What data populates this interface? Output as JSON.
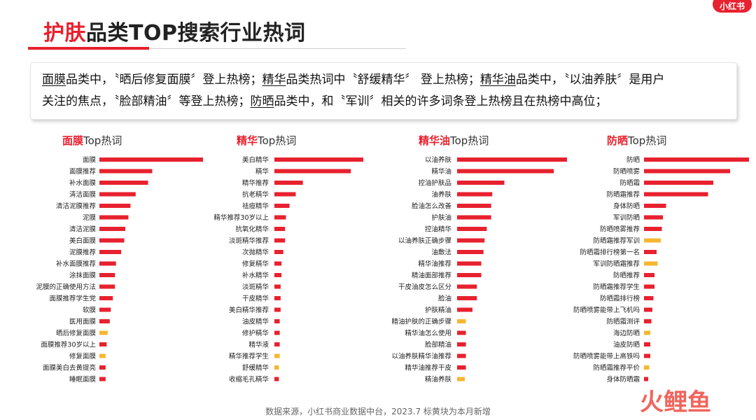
{
  "logo_text": "小红书",
  "title": {
    "accent": "护肤",
    "rest": "品类TOP搜索行业热词"
  },
  "summary": {
    "line1": [
      {
        "t": "面膜",
        "u": true
      },
      {
        "t": "品类中，〝晒后修复面膜〞登上热榜；",
        "u": false
      },
      {
        "t": "精华",
        "u": true
      },
      {
        "t": "品类热词中〝舒缓精华〞 登上热榜；",
        "u": false
      },
      {
        "t": "精华油",
        "u": true
      },
      {
        "t": "品类中，〝以油养肤〞是用户",
        "u": false
      }
    ],
    "line2": [
      {
        "t": "关注的焦点，〝脸部精油〞等登上热榜；",
        "u": false
      },
      {
        "t": "防晒",
        "u": true
      },
      {
        "t": "品类中，和〝军训〞相关的许多词条登上热榜且在热榜中高位；",
        "u": false
      }
    ]
  },
  "colors": {
    "red": "#e8212e",
    "yellow": "#f5b731"
  },
  "chart_data": [
    {
      "type": "bar",
      "title_highlight": "面膜",
      "title_suffix": "Top热词",
      "categories": [
        "面膜",
        "面膜推荐",
        "补水面膜",
        "清洁面膜",
        "清洁泥膜推荐",
        "泥膜",
        "清洁泥膜",
        "美白面膜",
        "泥膜推荐",
        "补水面膜推荐",
        "涂抹面膜",
        "泥膜的正确使用方法",
        "面膜推荐学生党",
        "软膜",
        "医用面膜",
        "晒后修复面膜",
        "面膜推荐30岁以上",
        "修复面膜",
        "面膜美白去黄提亮",
        "睡眠面膜"
      ],
      "values": [
        100,
        51,
        47,
        35,
        30,
        28,
        25,
        24,
        21,
        16,
        15,
        15,
        13,
        11,
        10,
        8,
        7,
        6,
        6,
        6
      ],
      "new": [
        false,
        false,
        false,
        false,
        false,
        false,
        false,
        false,
        false,
        false,
        false,
        false,
        false,
        false,
        false,
        true,
        false,
        true,
        false,
        false
      ]
    },
    {
      "type": "bar",
      "title_highlight": "精华",
      "title_suffix": "Top热词",
      "categories": [
        "美白精华",
        "精华",
        "精华推荐",
        "抗老精华",
        "祛痘精华",
        "精华推荐30岁以上",
        "抗氧化精华",
        "淡斑精华推荐",
        "次抛精华",
        "修复精华",
        "补水精华",
        "淡斑精华",
        "干皮精华",
        "美白精华推荐",
        "油皮精华",
        "修护精华",
        "精华液",
        "精华推荐学生",
        "舒缓精华",
        "收缩毛孔精华"
      ],
      "values": [
        100,
        86,
        32,
        24,
        17,
        13,
        12,
        12,
        10,
        8,
        8,
        7,
        7,
        7,
        6,
        6,
        6,
        6,
        5,
        5
      ],
      "new": [
        false,
        false,
        false,
        false,
        false,
        false,
        false,
        false,
        false,
        false,
        false,
        false,
        false,
        false,
        false,
        false,
        false,
        true,
        true,
        false
      ]
    },
    {
      "type": "bar",
      "title_highlight": "精华油",
      "title_suffix": "Top热词",
      "categories": [
        "以油养肤",
        "精华油",
        "控油护肤品",
        "油养肤",
        "脸油怎么改善",
        "护肤油",
        "控油精华",
        "以油养肤正确步骤",
        "油敷法",
        "精华油推荐",
        "精油面部推荐",
        "干皮油皮怎么区分",
        "脸油",
        "护肤精油",
        "精油护肤的正确步骤",
        "精华油怎么使用",
        "脸部精油",
        "以油养肤精华油推荐",
        "精华油推荐干皮",
        "精油养肤"
      ],
      "values": [
        100,
        88,
        43,
        32,
        31,
        31,
        27,
        25,
        24,
        22,
        22,
        18,
        18,
        14,
        8,
        8,
        8,
        8,
        8,
        7
      ],
      "new": [
        false,
        false,
        false,
        false,
        false,
        false,
        false,
        false,
        false,
        false,
        false,
        false,
        false,
        false,
        true,
        false,
        false,
        false,
        false,
        true
      ]
    },
    {
      "type": "bar",
      "title_highlight": "防晒",
      "title_suffix": "Top热词",
      "categories": [
        "防晒",
        "防晒喷雾",
        "防晒霜",
        "防晒霜推荐",
        "身体防晒",
        "军训防晒",
        "防晒喷雾推荐",
        "防晒霜推荐军训",
        "防晒霜排行榜第一名",
        "军训防晒霜推荐",
        "防晒推荐",
        "防晒霜推荐学生",
        "防晒霜排行榜",
        "防晒喷雾能带上飞机吗",
        "防晒霜测评",
        "海边防晒",
        "油皮防晒",
        "防晒喷雾能带上高铁吗",
        "防晒霜推荐平价",
        "身体防晒霜"
      ],
      "values": [
        100,
        82,
        66,
        61,
        21,
        18,
        17,
        16,
        12,
        13,
        10,
        10,
        9,
        8,
        7,
        6,
        6,
        6,
        5,
        4
      ],
      "new": [
        false,
        false,
        false,
        false,
        false,
        false,
        false,
        true,
        false,
        true,
        false,
        false,
        false,
        false,
        false,
        true,
        false,
        false,
        true,
        false
      ]
    }
  ],
  "footer": "数据来源，小红书商业数据中台，2023.7 标黄块为本月新增",
  "brand_text": "火鲤鱼"
}
